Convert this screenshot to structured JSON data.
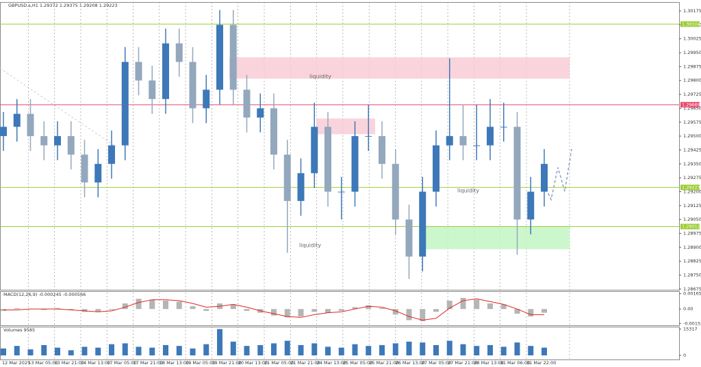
{
  "chart_data": {
    "type": "candlestick",
    "title": "GBPUSD.s,H1  1.29372 1.29375 1.29208 1.29223",
    "up_color": "#3d78b8",
    "down_color": "#93a7bd",
    "open": [
      1.295,
      1.2955,
      1.2962,
      1.295,
      1.2945,
      1.295,
      1.294,
      1.2925,
      1.2935,
      1.2945,
      1.299,
      1.298,
      1.297,
      1.3,
      1.299,
      1.2965,
      1.2975,
      1.301,
      1.2975,
      1.296,
      1.2965,
      1.294,
      1.2915,
      1.293,
      1.2955,
      1.292,
      1.292,
      1.295,
      1.295,
      1.2935,
      1.2905,
      1.2885,
      1.292,
      1.2945,
      1.295,
      1.2945,
      1.2945,
      1.2955,
      1.2955,
      1.2905,
      1.292
    ],
    "high": [
      1.2963,
      1.297,
      1.297,
      1.2958,
      1.2958,
      1.2958,
      1.2948,
      1.2943,
      1.2953,
      1.2998,
      1.2998,
      1.2988,
      1.3008,
      1.3008,
      1.2998,
      1.2983,
      1.3018,
      1.3018,
      1.2983,
      1.2973,
      1.2973,
      1.2948,
      1.2938,
      1.2968,
      1.2963,
      1.2928,
      1.2958,
      1.2967,
      1.2958,
      1.2943,
      1.2913,
      1.2928,
      1.2953,
      1.2992,
      1.2967,
      1.2967,
      1.297,
      1.2968,
      1.2963,
      1.2928,
      1.2943
    ],
    "low": [
      1.2942,
      1.2947,
      1.2942,
      1.2937,
      1.2937,
      1.2932,
      1.2917,
      1.2917,
      1.2927,
      1.2937,
      1.2972,
      1.2962,
      1.2962,
      1.2982,
      1.2957,
      1.2957,
      1.2967,
      1.2967,
      1.2952,
      1.2952,
      1.2932,
      1.2887,
      1.2907,
      1.2922,
      1.2912,
      1.2905,
      1.2912,
      1.2942,
      1.2927,
      1.2897,
      1.2873,
      1.2877,
      1.2912,
      1.2937,
      1.2937,
      1.2937,
      1.2937,
      1.2947,
      1.2886,
      1.2897,
      1.2912
    ],
    "close": [
      1.2955,
      1.2962,
      1.295,
      1.2945,
      1.295,
      1.294,
      1.2925,
      1.2935,
      1.2945,
      1.299,
      1.298,
      1.297,
      1.3,
      1.299,
      1.2965,
      1.2975,
      1.301,
      1.2975,
      1.296,
      1.2965,
      1.294,
      1.2915,
      1.293,
      1.2955,
      1.292,
      1.292,
      1.295,
      1.295,
      1.2935,
      1.2905,
      1.2885,
      1.292,
      1.2945,
      1.295,
      1.2945,
      1.2945,
      1.2955,
      1.2955,
      1.2905,
      1.292,
      1.2935
    ],
    "ylim": [
      1.28671,
      1.30223
    ],
    "yticks": [
      {
        "value": 1.28675,
        "label": "1.28675"
      },
      {
        "value": 1.2875,
        "label": "1.28750"
      },
      {
        "value": 1.28825,
        "label": "1.28825"
      },
      {
        "value": 1.289,
        "label": "1.28900"
      },
      {
        "value": 1.28975,
        "label": "1.28975"
      },
      {
        "value": 1.2905,
        "label": "1.29050"
      },
      {
        "value": 1.29125,
        "label": "1.29125"
      },
      {
        "value": 1.292,
        "label": "1.29200"
      },
      {
        "value": 1.29275,
        "label": "1.29275"
      },
      {
        "value": 1.2935,
        "label": "1.29350"
      },
      {
        "value": 1.29425,
        "label": "1.29425"
      },
      {
        "value": 1.295,
        "label": "1.29500"
      },
      {
        "value": 1.29575,
        "label": "1.29575"
      },
      {
        "value": 1.2965,
        "label": "1.29650"
      },
      {
        "value": 1.29725,
        "label": "1.29725"
      },
      {
        "value": 1.298,
        "label": "1.29800"
      },
      {
        "value": 1.29875,
        "label": "1.29875"
      },
      {
        "value": 1.2995,
        "label": "1.29950"
      },
      {
        "value": 1.30025,
        "label": "1.30025"
      },
      {
        "value": 1.301,
        "label": "1.30100"
      },
      {
        "value": 1.30175,
        "label": "1.30175"
      }
    ],
    "levels": [
      {
        "value": 1.30104,
        "color": "#9acd32"
      },
      {
        "value": 1.29669,
        "color": "#e8476b"
      },
      {
        "value": 1.29223,
        "color": "#9acd32"
      },
      {
        "value": 1.29012,
        "color": "#9acd32"
      }
    ],
    "zones": [
      {
        "top": 1.29925,
        "bottom": 1.2981,
        "color": "#f9c9d4"
      },
      {
        "top": 1.29595,
        "bottom": 1.2951,
        "color": "#f9c9d4"
      },
      {
        "top": 1.29012,
        "bottom": 1.2889,
        "color": "#bff5bf"
      }
    ],
    "annotations": [
      "liquidity",
      "liquidity",
      "liquidity"
    ],
    "x_labels": [
      "12 Mar 2025",
      "13 Mar 05:00",
      "13 Mar 21:00",
      "14 Mar 13:00",
      "17 Mar 05:00",
      "17 Mar 21:00",
      "18 Mar 13:00",
      "19 Mar 05:00",
      "19 Mar 21:00",
      "20 Mar 13:00",
      "21 Mar 05:00",
      "21 Mar 21:00",
      "24 Mar 13:00",
      "25 Mar 05:00",
      "25 Mar 21:00",
      "26 Mar 13:00",
      "27 Mar 05:00",
      "27 Mar 21:00",
      "28 Mar 13:00",
      "31 Mar 06:00",
      "31 Mar 22:00"
    ],
    "macd": {
      "label": "MACD(12,26,9) -0.000245 -0.000566",
      "histogram": [
        -0.0002,
        0.0001,
        0,
        -0.0001,
        0.0001,
        -0.0001,
        -0.0003,
        -0.0003,
        -0.0001,
        0.0006,
        0.0011,
        0.001,
        0.0009,
        0.0008,
        0.0003,
        -0.0002,
        0.0006,
        0.0005,
        -0.0002,
        -0.0004,
        -0.0007,
        -0.0009,
        -0.0008,
        -0.0003,
        -0.0004,
        -0.0002,
        0.0002,
        0.0004,
        0.0001,
        -0.0006,
        -0.0012,
        -0.0013,
        -0.0003,
        0.0009,
        0.0012,
        0.001,
        0.0006,
        0.0005,
        -0.0005,
        -0.0008,
        -0.0004
      ],
      "signal": [
        -0.0001,
        -0.0001,
        0,
        0,
        0,
        -0.0001,
        -0.0002,
        -0.0003,
        -0.0002,
        0.0002,
        0.0007,
        0.001,
        0.001,
        0.0009,
        0.0006,
        0.0002,
        0.0003,
        0.0005,
        0.0002,
        -0.0002,
        -0.0005,
        -0.0008,
        -0.0009,
        -0.0006,
        -0.0004,
        -0.0003,
        0,
        0.0003,
        0.0002,
        -0.0002,
        -0.0008,
        -0.0012,
        -0.001,
        0.0001,
        0.0009,
        0.0011,
        0.0008,
        0.0005,
        0,
        -0.0006,
        -0.0006
      ],
      "hist_color": "#b5b5b5",
      "signal_color": "#e02020",
      "ylim": [
        -0.00175,
        0.00185
      ],
      "yticks": [
        -0.00155,
        {
          "value": 0,
          "label": "0.00"
        },
        0.001653
      ]
    },
    "volumes": {
      "label": "Volumes 9585",
      "values": [
        4000,
        5500,
        3500,
        6000,
        4500,
        3000,
        5000,
        4500,
        6500,
        7000,
        5000,
        4500,
        6000,
        5500,
        4000,
        6500,
        15317,
        8000,
        5500,
        6000,
        7000,
        8500,
        6000,
        7000,
        5000,
        4500,
        6500,
        5500,
        6000,
        7000,
        8000,
        7500,
        6000,
        8500,
        6500,
        5500,
        6000,
        5000,
        7500,
        5500,
        4500
      ],
      "color": "#3d78b8",
      "ylim": [
        0,
        16300
      ],
      "yticks": [
        0,
        15317
      ]
    }
  }
}
